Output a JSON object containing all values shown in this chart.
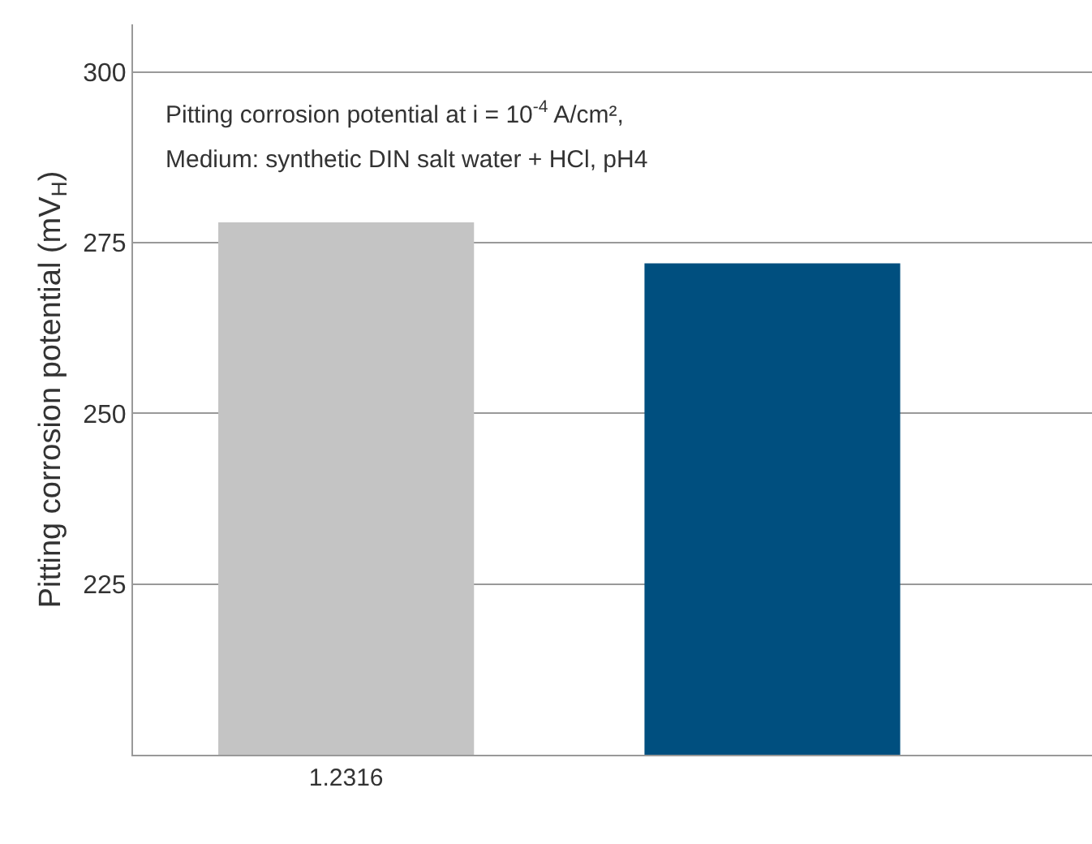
{
  "chart_data": {
    "type": "bar",
    "ylabel": "Pitting corrosion potential (mV$_{H}$)",
    "categories": [
      "1.2316",
      null
    ],
    "values": [
      278,
      272
    ],
    "colors": [
      "#c4c4c4",
      "#004f7f"
    ],
    "ylim": [
      200,
      307
    ],
    "yticks": [
      225,
      250,
      275,
      300
    ],
    "grid": "y",
    "annotations": [
      "Pitting corrosion potential at i = 10$^{-4}$ A/cm²,",
      "Medium: synthetic DIN salt water + HCl, pH4"
    ]
  }
}
